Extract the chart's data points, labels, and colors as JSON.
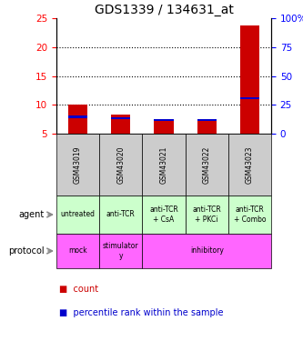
{
  "title": "GDS1339 / 134631_at",
  "samples": [
    "GSM43019",
    "GSM43020",
    "GSM43021",
    "GSM43022",
    "GSM43023"
  ],
  "count_values": [
    10.1,
    8.35,
    7.5,
    7.5,
    23.7
  ],
  "percentile_values": [
    7.9,
    7.7,
    7.4,
    7.4,
    11.2
  ],
  "count_bottom": [
    5,
    5,
    5,
    5,
    5
  ],
  "ylim": [
    5,
    25
  ],
  "yticks": [
    5,
    10,
    15,
    20,
    25
  ],
  "y2lim": [
    0,
    100
  ],
  "y2ticks": [
    0,
    25,
    50,
    75,
    100
  ],
  "y2ticklabels": [
    "0",
    "25",
    "50",
    "75",
    "100%"
  ],
  "count_color": "#cc0000",
  "percentile_color": "#0000cc",
  "agent_labels": [
    "untreated",
    "anti-TCR",
    "anti-TCR\n+ CsA",
    "anti-TCR\n+ PKCi",
    "anti-TCR\n+ Combo"
  ],
  "agent_bg": "#ccffcc",
  "protocol_info": [
    [
      0,
      1,
      "mock"
    ],
    [
      1,
      2,
      "stimulator\ny"
    ],
    [
      2,
      5,
      "inhibitory"
    ]
  ],
  "protocol_bg": "#ff66ff",
  "sample_bg": "#cccccc",
  "title_fontsize": 10,
  "tick_fontsize": 7.5,
  "annot_fontsize": 6.5,
  "legend_fontsize": 7
}
